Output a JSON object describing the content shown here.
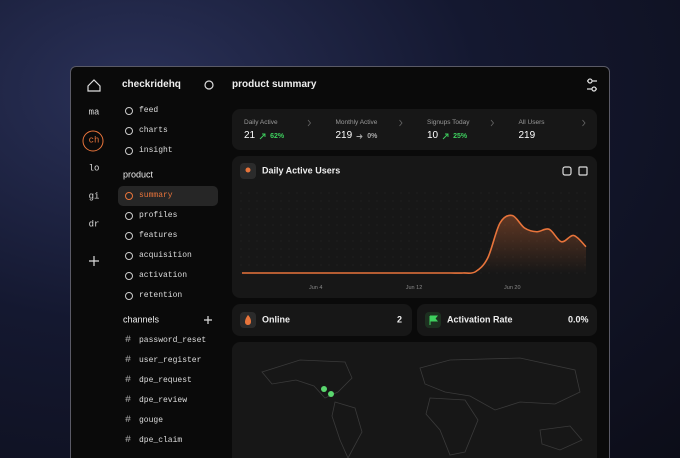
{
  "rail": {
    "items": [
      "ma",
      "ch",
      "lo",
      "gi",
      "dr"
    ],
    "active": 1
  },
  "sidebar": {
    "workspace": "checkridehq",
    "top_items": [
      "feed",
      "charts",
      "insight"
    ],
    "product_heading": "product",
    "product_items": [
      "summary",
      "profiles",
      "features",
      "acquisition",
      "activation",
      "retention"
    ],
    "active_product_item": 0,
    "channels_heading": "channels",
    "channel_prefix": "#",
    "channels": [
      "password_reset",
      "user_register",
      "dpe_request",
      "dpe_review",
      "gouge",
      "dpe_claim"
    ]
  },
  "header": {
    "title": "product summary"
  },
  "stats": [
    {
      "label": "Daily Active",
      "value": "21",
      "change": "62%",
      "trend": "up"
    },
    {
      "label": "Monthly Active",
      "value": "219",
      "change": "0%",
      "trend": "flat"
    },
    {
      "label": "Signups Today",
      "value": "10",
      "change": "25%",
      "trend": "up"
    },
    {
      "label": "All Users",
      "value": "219"
    }
  ],
  "chart_data": {
    "type": "line",
    "title": "Daily Active Users",
    "categories": [
      null,
      null,
      null,
      null,
      null,
      null,
      "Jun 4",
      null,
      null,
      null,
      null,
      null,
      null,
      null,
      "Jun 12",
      null,
      null,
      null,
      null,
      null,
      null,
      null,
      "Jun 20",
      null,
      null,
      null,
      null,
      null,
      null
    ],
    "values": [
      0,
      0,
      0,
      0,
      0,
      0,
      0,
      0,
      0,
      0,
      0,
      0,
      0,
      0,
      0,
      0,
      0,
      0,
      0,
      1,
      12,
      40,
      46,
      36,
      33,
      35,
      25,
      30,
      21
    ],
    "color": "#e8743b",
    "ylim": [
      0,
      60
    ]
  },
  "cards": [
    {
      "label": "Online",
      "value": "2"
    },
    {
      "label": "Activation Rate",
      "value": "0.0%"
    }
  ]
}
